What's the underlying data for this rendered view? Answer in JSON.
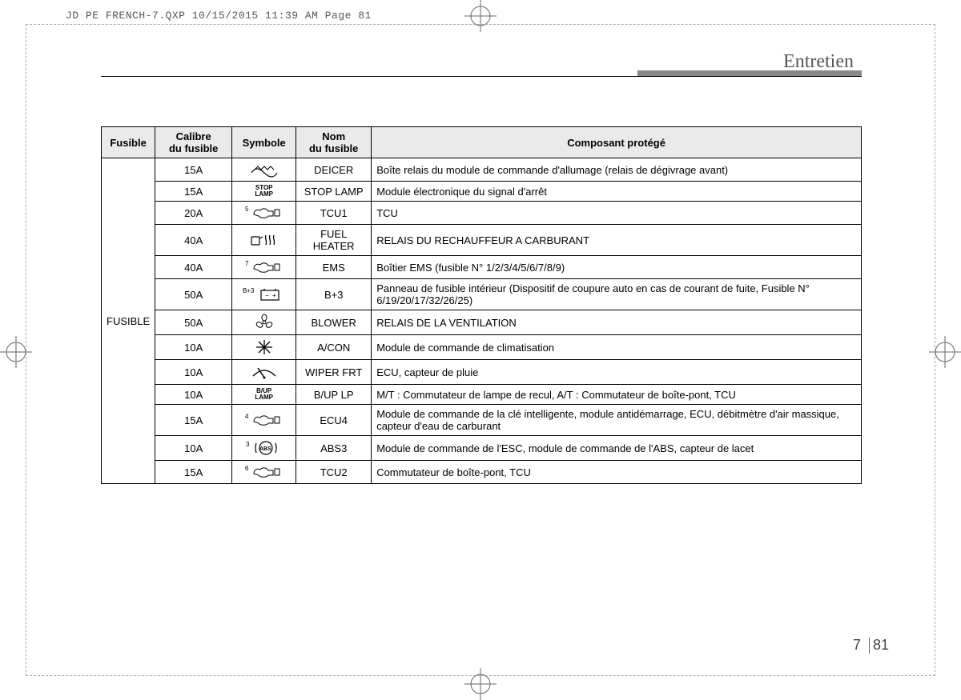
{
  "print_header": "JD PE FRENCH-7.QXP  10/15/2015  11:39 AM  Page 81",
  "section_title": "Entretien",
  "page_chapter": "7",
  "page_number": "81",
  "table": {
    "headers": {
      "fusible": "Fusible",
      "calibre": "Calibre\ndu fusible",
      "symbole": "Symbole",
      "nom": "Nom\ndu fusible",
      "composant": "Composant protégé"
    },
    "group_label": "FUSIBLE",
    "rows": [
      {
        "calibre": "15A",
        "symbol_type": "deicer",
        "symbol_text": "",
        "nom": "DEICER",
        "comp": "Boîte relais du module de commande d'allumage (relais de dégivrage avant)"
      },
      {
        "calibre": "15A",
        "symbol_type": "text",
        "symbol_text": "STOP\nLAMP",
        "nom": "STOP LAMP",
        "comp": "Module électronique du signal d'arrêt"
      },
      {
        "calibre": "20A",
        "symbol_type": "engine",
        "symbol_sup": "5",
        "nom": "TCU1",
        "comp": "TCU"
      },
      {
        "calibre": "40A",
        "symbol_type": "fuelheat",
        "nom": "FUEL\nHEATER",
        "comp": "RELAIS DU RECHAUFFEUR A CARBURANT"
      },
      {
        "calibre": "40A",
        "symbol_type": "engine",
        "symbol_sup": "7",
        "nom": "EMS",
        "comp": "Boîtier EMS (fusible N° 1/2/3/4/5/6/7/8/9)"
      },
      {
        "calibre": "50A",
        "symbol_type": "battery",
        "symbol_sup": "B+3",
        "nom": "B+3",
        "comp": "Panneau de fusible intérieur (Dispositif de coupure auto en cas de courant de fuite, Fusible N° 6/19/20/17/32/26/25)"
      },
      {
        "calibre": "50A",
        "symbol_type": "fan",
        "nom": "BLOWER",
        "comp": "RELAIS DE LA VENTILATION"
      },
      {
        "calibre": "10A",
        "symbol_type": "snow",
        "nom": "A/CON",
        "comp": "Module de commande de climatisation"
      },
      {
        "calibre": "10A",
        "symbol_type": "wiper",
        "nom": "WIPER FRT",
        "comp": "ECU, capteur de pluie"
      },
      {
        "calibre": "10A",
        "symbol_type": "text",
        "symbol_text": "B/UP\nLAMP",
        "nom": "B/UP LP",
        "comp": "M/T : Commutateur de lampe de recul, A/T : Commutateur de boîte-pont, TCU"
      },
      {
        "calibre": "15A",
        "symbol_type": "engine",
        "symbol_sup": "4",
        "nom": "ECU4",
        "comp": "Module de commande de la clé intelligente, module antidémarrage, ECU, débitmètre d'air massique, capteur d'eau de carburant"
      },
      {
        "calibre": "10A",
        "symbol_type": "abs",
        "symbol_sup": "3",
        "nom": "ABS3",
        "comp": "Module de commande de l'ESC, module de commande de l'ABS, capteur de lacet"
      },
      {
        "calibre": "15A",
        "symbol_type": "engine",
        "symbol_sup": "6",
        "nom": "TCU2",
        "comp": "Commutateur de boîte-pont, TCU"
      }
    ]
  }
}
